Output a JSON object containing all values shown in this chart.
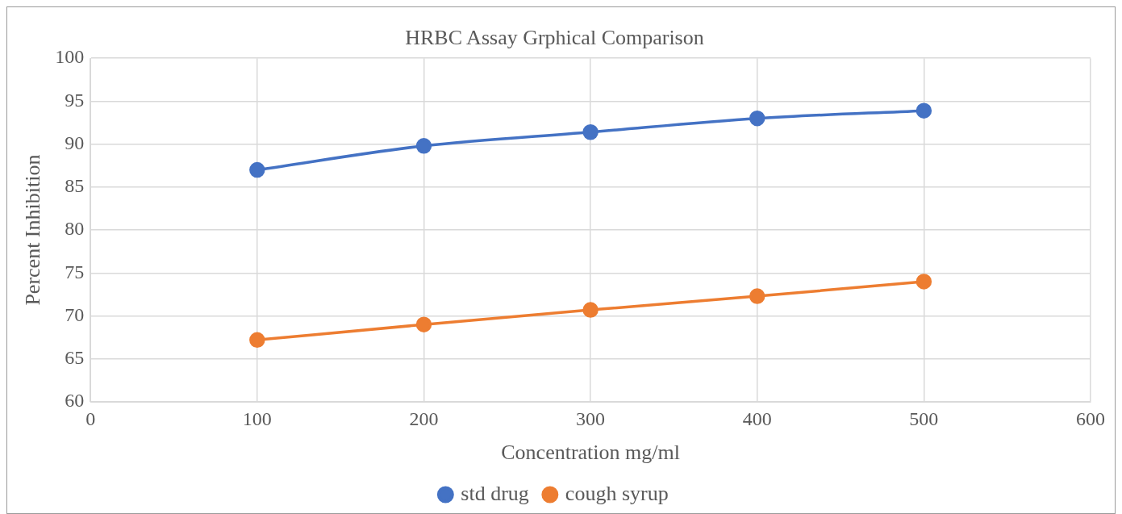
{
  "chart_data": {
    "type": "line",
    "title": "HRBC Assay Grphical Comparison",
    "xlabel": "Concentration mg/ml",
    "ylabel": "Percent Inhibition",
    "x": [
      100,
      200,
      300,
      400,
      500
    ],
    "series": [
      {
        "name": "std drug",
        "color": "#4472c4",
        "values": [
          87.0,
          89.8,
          91.4,
          93.0,
          93.9
        ]
      },
      {
        "name": "cough syrup",
        "color": "#ed7d31",
        "values": [
          67.2,
          69.0,
          70.7,
          72.3,
          74.0
        ]
      }
    ],
    "xlim": [
      0,
      600
    ],
    "xticks": [
      0,
      100,
      200,
      300,
      400,
      500,
      600
    ],
    "ylim": [
      60,
      100
    ],
    "yticks": [
      60,
      65,
      70,
      75,
      80,
      85,
      90,
      95,
      100
    ],
    "grid": true,
    "legend": "bottom",
    "marker": "circle",
    "line_style": "solid"
  }
}
